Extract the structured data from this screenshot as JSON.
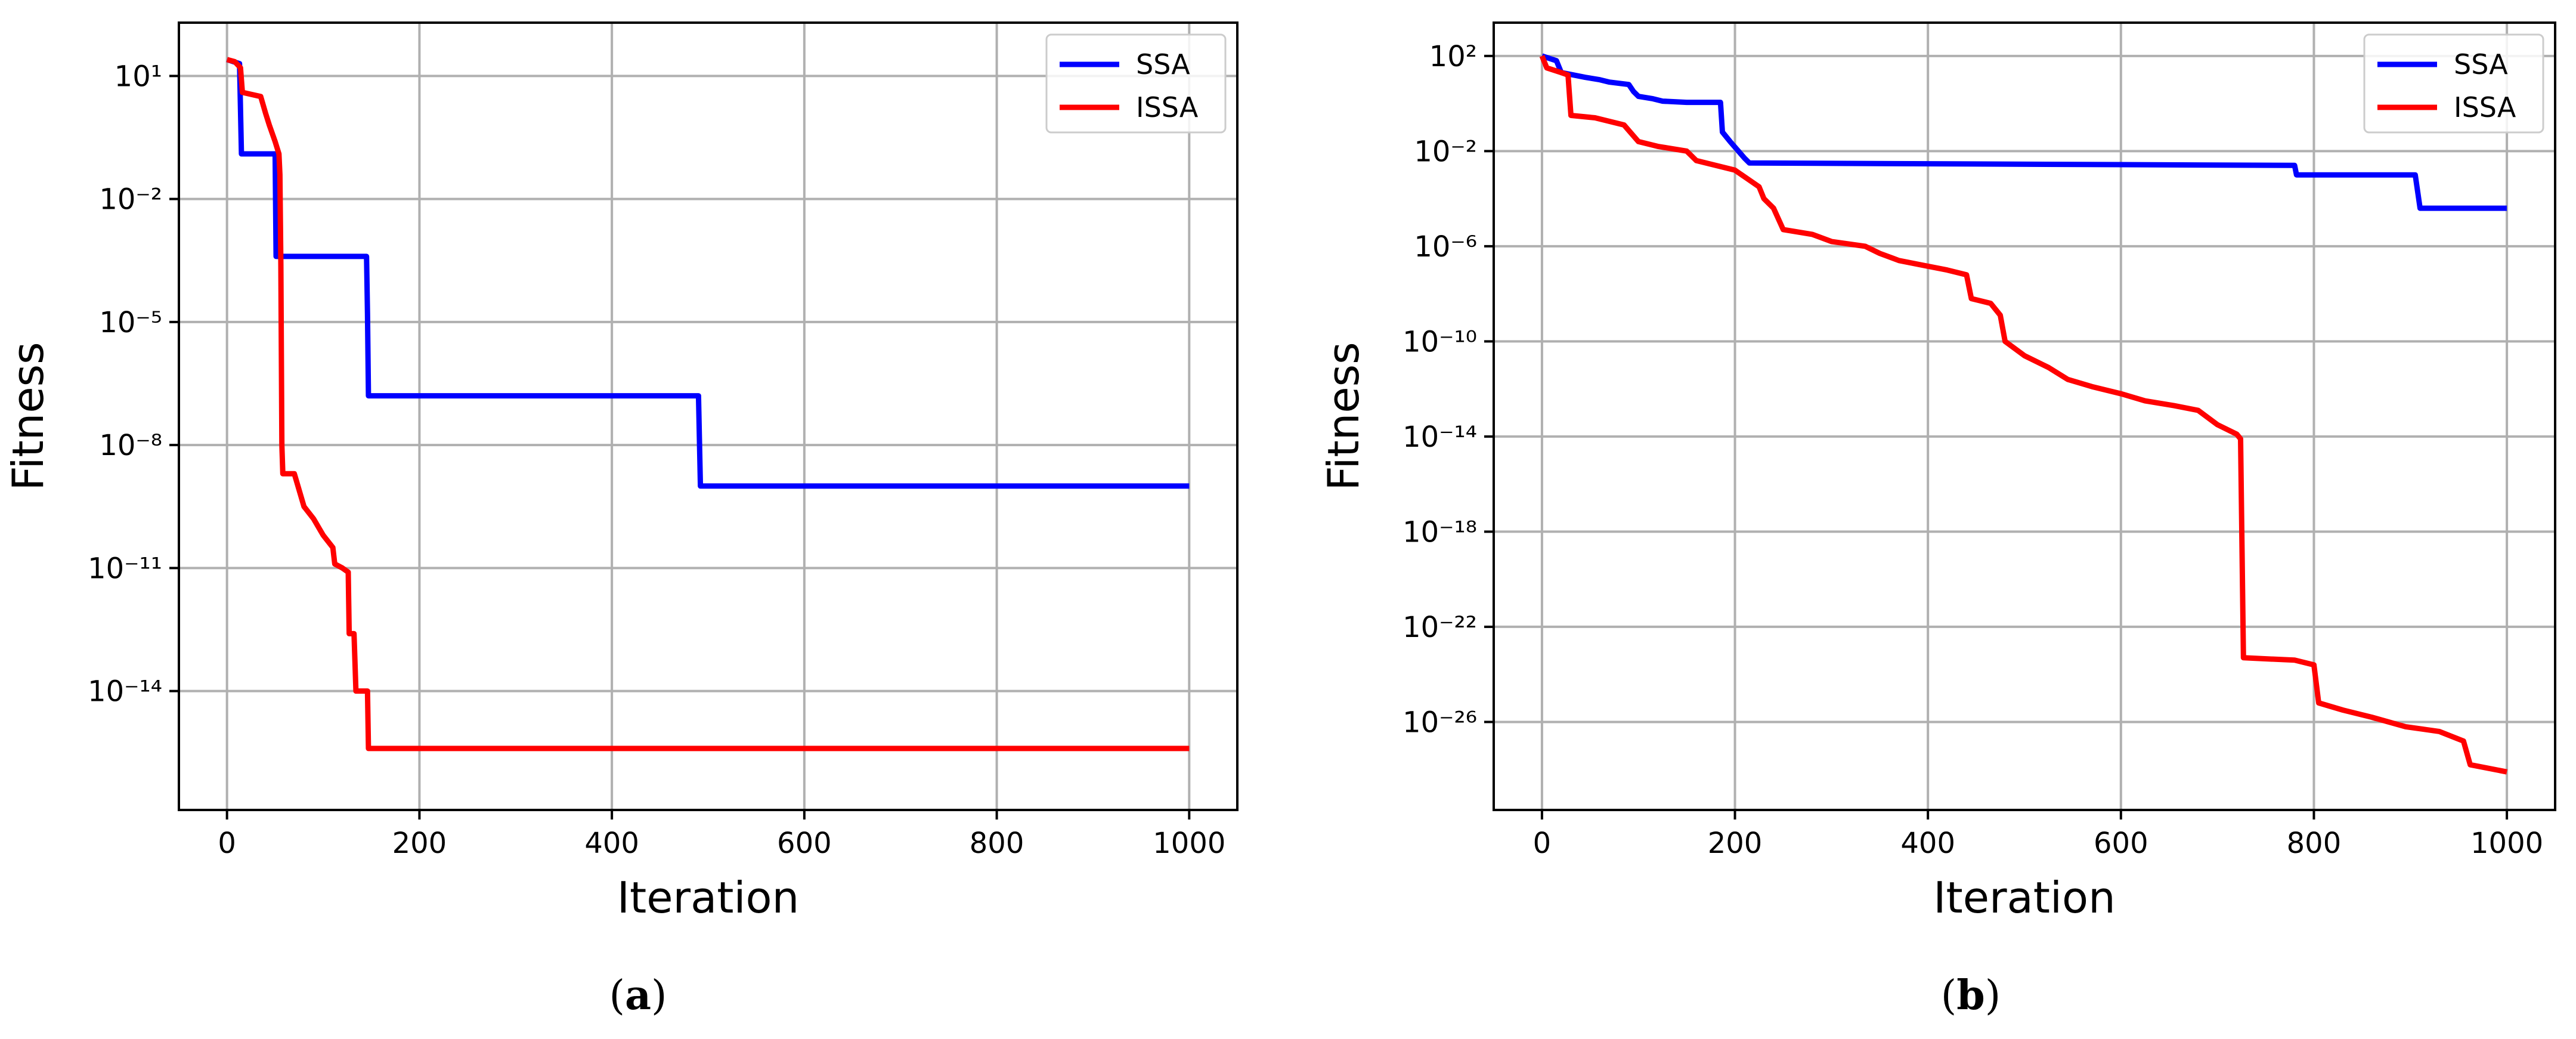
{
  "chart_data": [
    {
      "type": "line",
      "panel": "a",
      "caption_letter": "a",
      "xlabel": "Iteration",
      "ylabel": "Fitness",
      "xlim": [
        -50,
        1050
      ],
      "x_ticks": [
        0,
        200,
        400,
        600,
        800,
        1000
      ],
      "y_scale": "log",
      "ylim_exp": [
        -16.9,
        2.3
      ],
      "y_tick_exps": [
        1,
        -2,
        -5,
        -8,
        -11,
        -14
      ],
      "grid": true,
      "legend_position": "top-right",
      "series": [
        {
          "name": "SSA",
          "color": "#0000ff",
          "points": [
            [
              0,
              1.4
            ],
            [
              13,
              1.3
            ],
            [
              15,
              -0.9
            ],
            [
              50,
              -0.9
            ],
            [
              51,
              -3.4
            ],
            [
              145,
              -3.4
            ],
            [
              146,
              -4.8
            ],
            [
              147,
              -6.8
            ],
            [
              490,
              -6.8
            ],
            [
              492,
              -9.0
            ],
            [
              1000,
              -9.0
            ]
          ]
        },
        {
          "name": "ISSA",
          "color": "#ff0000",
          "points": [
            [
              0,
              1.4
            ],
            [
              8,
              1.35
            ],
            [
              14,
              1.2
            ],
            [
              16,
              0.6
            ],
            [
              35,
              0.5
            ],
            [
              40,
              0.1
            ],
            [
              44,
              -0.2
            ],
            [
              50,
              -0.6
            ],
            [
              54,
              -0.9
            ],
            [
              55,
              -1.4
            ],
            [
              56,
              -3.6
            ],
            [
              57,
              -8.0
            ],
            [
              58,
              -8.7
            ],
            [
              70,
              -8.7
            ],
            [
              80,
              -9.5
            ],
            [
              90,
              -9.8
            ],
            [
              100,
              -10.2
            ],
            [
              110,
              -10.5
            ],
            [
              112,
              -10.9
            ],
            [
              120,
              -11.0
            ],
            [
              126,
              -11.1
            ],
            [
              127,
              -12.6
            ],
            [
              132,
              -12.6
            ],
            [
              134,
              -14.0
            ],
            [
              146,
              -14.0
            ],
            [
              147,
              -15.4
            ],
            [
              1000,
              -15.4
            ]
          ]
        }
      ]
    },
    {
      "type": "line",
      "panel": "b",
      "caption_letter": "b",
      "xlabel": "Iteration",
      "ylabel": "Fitness",
      "xlim": [
        -50,
        1050
      ],
      "x_ticks": [
        0,
        200,
        400,
        600,
        800,
        1000
      ],
      "y_scale": "log",
      "ylim_exp": [
        -29.7,
        3.4
      ],
      "y_tick_exps": [
        2,
        -2,
        -6,
        -10,
        -14,
        -18,
        -22,
        -26
      ],
      "grid": true,
      "legend_position": "top-right",
      "series": [
        {
          "name": "SSA",
          "color": "#0000ff",
          "points": [
            [
              0,
              2.0
            ],
            [
              15,
              1.8
            ],
            [
              20,
              1.3
            ],
            [
              45,
              1.1
            ],
            [
              60,
              1.0
            ],
            [
              70,
              0.9
            ],
            [
              90,
              0.8
            ],
            [
              95,
              0.5
            ],
            [
              100,
              0.3
            ],
            [
              115,
              0.2
            ],
            [
              125,
              0.1
            ],
            [
              150,
              0.05
            ],
            [
              185,
              0.05
            ],
            [
              187,
              -1.2
            ],
            [
              195,
              -1.6
            ],
            [
              210,
              -2.3
            ],
            [
              215,
              -2.5
            ],
            [
              780,
              -2.6
            ],
            [
              782,
              -3.0
            ],
            [
              905,
              -3.0
            ],
            [
              910,
              -4.4
            ],
            [
              1000,
              -4.4
            ]
          ]
        },
        {
          "name": "ISSA",
          "color": "#ff0000",
          "points": [
            [
              0,
              2.0
            ],
            [
              5,
              1.5
            ],
            [
              20,
              1.3
            ],
            [
              27,
              1.2
            ],
            [
              30,
              -0.5
            ],
            [
              55,
              -0.6
            ],
            [
              85,
              -0.9
            ],
            [
              100,
              -1.6
            ],
            [
              120,
              -1.8
            ],
            [
              150,
              -2.0
            ],
            [
              160,
              -2.4
            ],
            [
              200,
              -2.8
            ],
            [
              225,
              -3.5
            ],
            [
              230,
              -4.0
            ],
            [
              240,
              -4.4
            ],
            [
              250,
              -5.3
            ],
            [
              280,
              -5.5
            ],
            [
              300,
              -5.8
            ],
            [
              335,
              -6.0
            ],
            [
              350,
              -6.3
            ],
            [
              370,
              -6.6
            ],
            [
              395,
              -6.8
            ],
            [
              420,
              -7.0
            ],
            [
              440,
              -7.2
            ],
            [
              445,
              -8.2
            ],
            [
              465,
              -8.4
            ],
            [
              475,
              -8.9
            ],
            [
              480,
              -10.0
            ],
            [
              500,
              -10.6
            ],
            [
              525,
              -11.1
            ],
            [
              545,
              -11.6
            ],
            [
              570,
              -11.9
            ],
            [
              600,
              -12.2
            ],
            [
              625,
              -12.5
            ],
            [
              655,
              -12.7
            ],
            [
              680,
              -12.9
            ],
            [
              700,
              -13.5
            ],
            [
              720,
              -13.9
            ],
            [
              724,
              -14.1
            ],
            [
              727,
              -23.3
            ],
            [
              780,
              -23.4
            ],
            [
              800,
              -23.6
            ],
            [
              805,
              -25.2
            ],
            [
              830,
              -25.5
            ],
            [
              860,
              -25.8
            ],
            [
              895,
              -26.2
            ],
            [
              930,
              -26.4
            ],
            [
              955,
              -26.8
            ],
            [
              962,
              -27.8
            ],
            [
              1000,
              -28.1
            ]
          ]
        }
      ]
    }
  ]
}
